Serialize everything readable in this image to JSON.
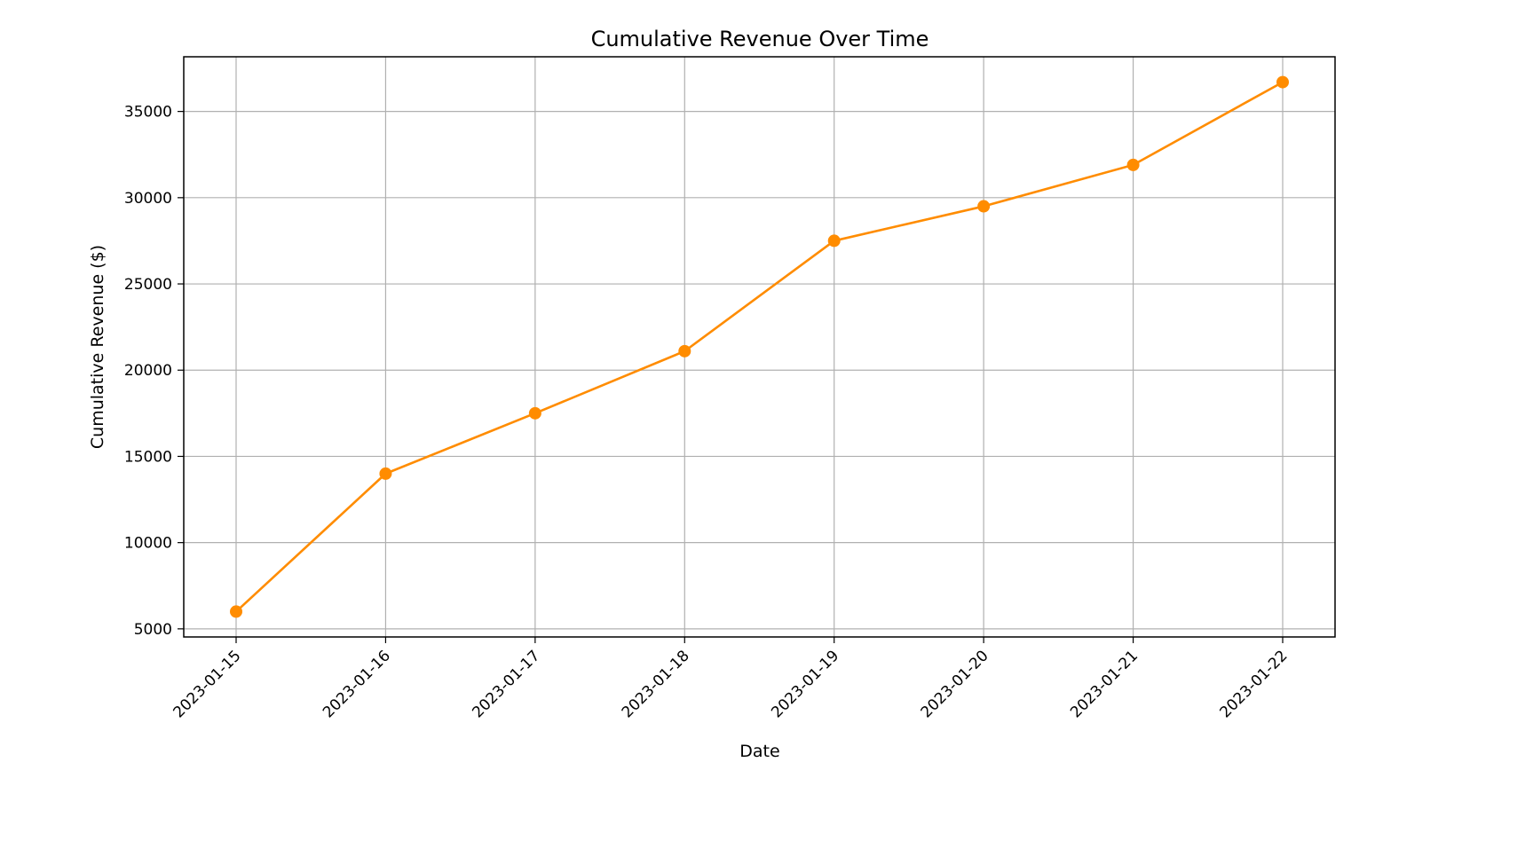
{
  "chart_data": {
    "type": "line",
    "title": "Cumulative Revenue Over Time",
    "xlabel": "Date",
    "ylabel": "Cumulative Revenue ($)",
    "x": [
      "2023-01-15",
      "2023-01-16",
      "2023-01-17",
      "2023-01-18",
      "2023-01-19",
      "2023-01-20",
      "2023-01-21",
      "2023-01-22"
    ],
    "series": [
      {
        "values": [
          6000,
          14000,
          17500,
          21100,
          27500,
          29500,
          31900,
          36700
        ],
        "color": "#ff8c00",
        "marker": "circle"
      }
    ],
    "y_ticks": [
      5000,
      10000,
      15000,
      20000,
      25000,
      30000,
      35000
    ],
    "ylim": [
      4530,
      38170
    ],
    "grid": true,
    "legend": "none",
    "x_tick_rotation": "45 degrees"
  }
}
